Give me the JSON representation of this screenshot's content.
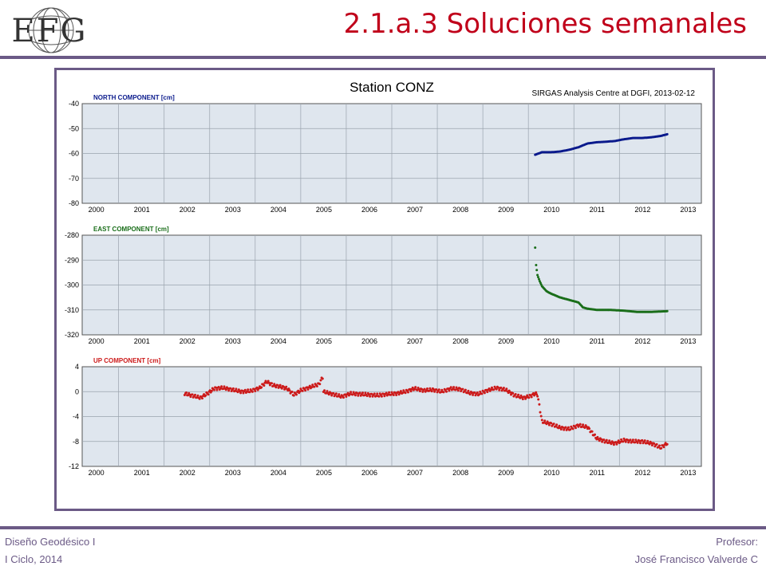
{
  "slide": {
    "title": "2.1.a.3 Soluciones semanales",
    "logo_text": "EFG",
    "footer_left": [
      "Diseño Geodésico I",
      "I Ciclo, 2014"
    ],
    "footer_right": [
      "Profesor:",
      "José Francisco Valverde C"
    ]
  },
  "colors": {
    "title": "#c0001a",
    "rule": "#6b5a86",
    "plot_bg": "#dfe6ee",
    "north": "#0a1a8c",
    "east": "#1a6e1a",
    "up": "#cc1a1a"
  },
  "chart_data": {
    "title": "Station CONZ",
    "subtitle": "SIRGAS Analysis Centre at DGFI, 2013-02-12",
    "grid": true,
    "panels": [
      {
        "name": "NORTH COMPONENT [cm]",
        "type": "scatter",
        "color": "#0a1a8c",
        "ylim": [
          -80,
          -40
        ],
        "yticks": [
          "-40",
          "-50",
          "-60",
          "-70",
          "-80"
        ],
        "xlim": [
          1999.7,
          2013.3
        ],
        "xticks": [
          "2000",
          "2001",
          "2002",
          "2003",
          "2004",
          "2005",
          "2006",
          "2007",
          "2008",
          "2009",
          "2010",
          "2011",
          "2012",
          "2013"
        ],
        "x": [
          2009.65,
          2009.8,
          2010.0,
          2010.2,
          2010.4,
          2010.6,
          2010.8,
          2011.0,
          2011.2,
          2011.4,
          2011.6,
          2011.8,
          2012.0,
          2012.2,
          2012.4,
          2012.55
        ],
        "y": [
          -60.5,
          -59.5,
          -59.5,
          -59.2,
          -58.5,
          -57.5,
          -56.0,
          -55.5,
          -55.3,
          -55.0,
          -54.3,
          -53.8,
          -53.8,
          -53.5,
          -53.0,
          -52.3
        ]
      },
      {
        "name": "EAST COMPONENT [cm]",
        "type": "scatter",
        "color": "#1a6e1a",
        "ylim": [
          -320,
          -280
        ],
        "yticks": [
          "-280",
          "-290",
          "-300",
          "-310",
          "-320"
        ],
        "xlim": [
          1999.7,
          2013.3
        ],
        "xticks": [
          "2000",
          "2001",
          "2002",
          "2003",
          "2004",
          "2005",
          "2006",
          "2007",
          "2008",
          "2009",
          "2010",
          "2011",
          "2012",
          "2013"
        ],
        "x": [
          2009.65,
          2009.67,
          2009.7,
          2009.75,
          2009.8,
          2009.9,
          2010.0,
          2010.2,
          2010.4,
          2010.6,
          2010.7,
          2010.8,
          2011.0,
          2011.3,
          2011.6,
          2011.9,
          2012.2,
          2012.55
        ],
        "y": [
          -285,
          -292,
          -296,
          -298.5,
          -300.5,
          -302.5,
          -303.5,
          -305.0,
          -306.0,
          -307.0,
          -309.0,
          -309.5,
          -310.0,
          -310.0,
          -310.3,
          -310.8,
          -310.8,
          -310.5
        ]
      },
      {
        "name": "UP COMPONENT [cm]",
        "type": "scatter",
        "color": "#cc1a1a",
        "ylim": [
          -12,
          4
        ],
        "yticks": [
          "4",
          "0",
          "-4",
          "-8",
          "-12"
        ],
        "xlim": [
          1999.7,
          2013.3
        ],
        "xticks": [
          "2000",
          "2001",
          "2002",
          "2003",
          "2004",
          "2005",
          "2006",
          "2007",
          "2008",
          "2009",
          "2010",
          "2011",
          "2012",
          "2013"
        ],
        "x": [
          2001.95,
          2002.1,
          2002.3,
          2002.45,
          2002.6,
          2002.8,
          2003.0,
          2003.2,
          2003.4,
          2003.6,
          2003.75,
          2003.9,
          2004.05,
          2004.2,
          2004.35,
          2004.5,
          2004.7,
          2004.9,
          2004.98,
          2005.0,
          2005.2,
          2005.4,
          2005.6,
          2005.8,
          2006.0,
          2006.2,
          2006.4,
          2006.6,
          2006.8,
          2007.0,
          2007.2,
          2007.4,
          2007.6,
          2007.8,
          2008.0,
          2008.2,
          2008.4,
          2008.6,
          2008.8,
          2009.0,
          2009.2,
          2009.4,
          2009.55,
          2009.65,
          2009.7,
          2009.8,
          2010.0,
          2010.2,
          2010.4,
          2010.6,
          2010.8,
          2011.0,
          2011.2,
          2011.4,
          2011.6,
          2011.8,
          2012.0,
          2012.2,
          2012.3,
          2012.4,
          2012.55
        ],
        "y": [
          -0.3,
          -0.6,
          -1.0,
          -0.3,
          0.5,
          0.6,
          0.3,
          0.0,
          0.1,
          0.6,
          1.6,
          1.0,
          0.8,
          0.5,
          -0.5,
          0.2,
          0.7,
          1.2,
          2.3,
          0.0,
          -0.4,
          -0.8,
          -0.3,
          -0.4,
          -0.5,
          -0.6,
          -0.4,
          -0.3,
          0.0,
          0.5,
          0.2,
          0.3,
          0.0,
          0.5,
          0.4,
          -0.2,
          -0.4,
          0.2,
          0.6,
          0.3,
          -0.6,
          -1.0,
          -0.7,
          -0.3,
          -0.5,
          -4.8,
          -5.2,
          -5.8,
          -6.0,
          -5.4,
          -5.7,
          -7.5,
          -8.0,
          -8.3,
          -7.8,
          -8.0,
          -8.0,
          -8.3,
          -8.6,
          -9.0,
          -8.3
        ]
      }
    ]
  }
}
